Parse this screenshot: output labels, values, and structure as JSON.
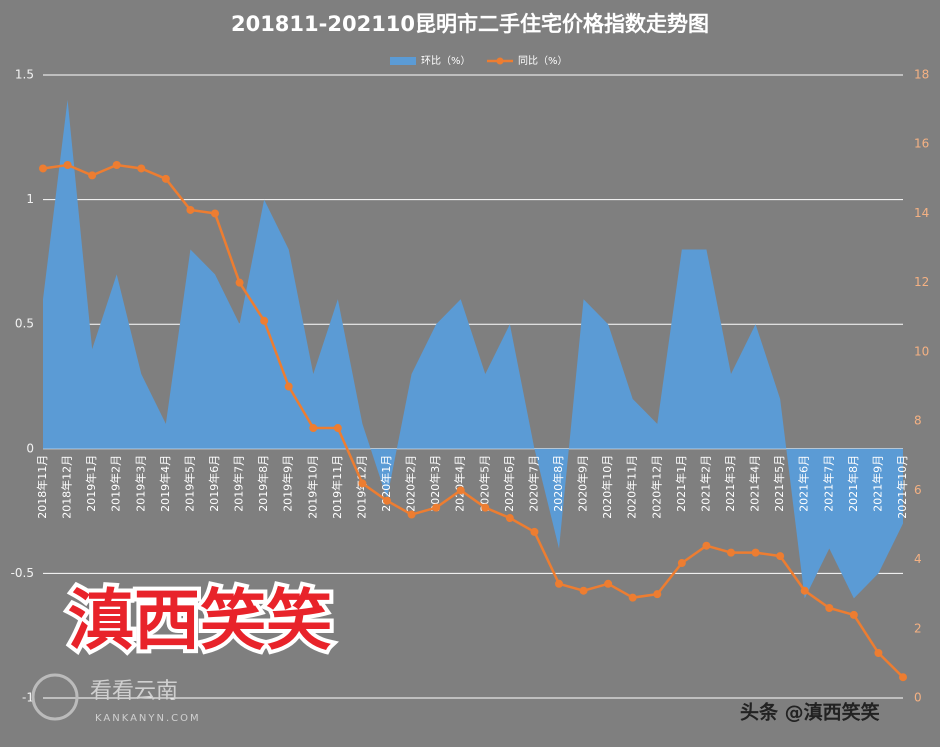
{
  "chart_data": {
    "type": "combo",
    "title": "201811-202110昆明市二手住宅价格指数走势图",
    "categories": [
      "2018年11月",
      "2018年12月",
      "2019年1月",
      "2019年2月",
      "2019年3月",
      "2019年4月",
      "2019年5月",
      "2019年6月",
      "2019年7月",
      "2019年8月",
      "2019年9月",
      "2019年10月",
      "2019年11月",
      "2019年12月",
      "2020年1月",
      "2020年2月",
      "2020年3月",
      "2020年4月",
      "2020年5月",
      "2020年6月",
      "2020年7月",
      "2020年8月",
      "2020年9月",
      "2020年10月",
      "2020年11月",
      "2020年12月",
      "2021年1月",
      "2021年2月",
      "2021年3月",
      "2021年4月",
      "2021年5月",
      "2021年6月",
      "2021年7月",
      "2021年8月",
      "2021年9月",
      "2021年10月"
    ],
    "series": [
      {
        "name": "环比（%）",
        "type": "area",
        "color": "#5b9bd5",
        "values": [
          0.6,
          1.4,
          0.4,
          0.7,
          0.3,
          0.1,
          0.8,
          0.7,
          0.5,
          1.0,
          0.8,
          0.3,
          0.6,
          0.1,
          -0.2,
          0.3,
          0.5,
          0.6,
          0.3,
          0.5,
          0,
          -0.4,
          0.6,
          0.5,
          0.2,
          0.1,
          0.8,
          0.8,
          0.3,
          0.5,
          0.2,
          -0.6,
          -0.4,
          -0.6,
          -0.5,
          -0.3
        ]
      },
      {
        "name": "同比（%）",
        "type": "line",
        "axis": "y2",
        "color": "#ed7d31",
        "values": [
          15.3,
          15.4,
          15.1,
          15.4,
          15.3,
          15.0,
          14.1,
          14.0,
          12.0,
          10.9,
          9.0,
          7.8,
          7.8,
          6.2,
          5.7,
          5.3,
          5.5,
          6.0,
          5.5,
          5.2,
          4.8,
          3.3,
          3.1,
          3.3,
          2.9,
          3.0,
          3.9,
          4.4,
          4.2,
          4.2,
          4.1,
          3.1,
          2.6,
          2.4,
          1.3,
          0.6
        ]
      }
    ],
    "ylim": [
      -1,
      1.5
    ],
    "yticks": [
      -1,
      -0.5,
      0,
      0.5,
      1,
      1.5
    ],
    "y2lim": [
      0,
      18
    ],
    "y2ticks": [
      0,
      2,
      4,
      6,
      8,
      10,
      12,
      14,
      16,
      18
    ],
    "grid": true
  },
  "watermarks": {
    "banner": "滇西笑笑",
    "logo": "看看云南",
    "logo_url": "KANKANYN.COM",
    "credit": "头条 @滇西笑笑"
  }
}
